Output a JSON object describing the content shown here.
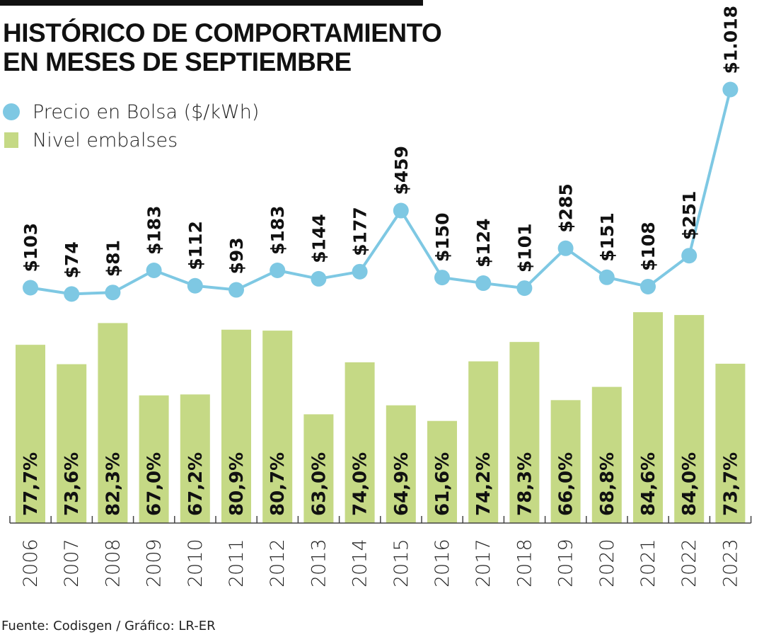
{
  "header": {
    "title_line1": "HISTÓRICO DE COMPORTAMIENTO",
    "title_line2": "EN MESES DE SEPTIEMBRE"
  },
  "legend": {
    "price_label": "Precio en Bolsa ($/kWh)",
    "reservoir_label": "Nivel embalses"
  },
  "source": "Fuente: Codisgen / Gráfico: LR-ER",
  "colors": {
    "price": "#7ec8e3",
    "reservoir": "#c5d985",
    "text": "#111111"
  },
  "chart_data": {
    "type": "bar",
    "title": "HISTÓRICO DE COMPORTAMIENTO EN MESES DE SEPTIEMBRE",
    "xlabel": "",
    "ylabel": "",
    "categories": [
      "2006",
      "2007",
      "2008",
      "2009",
      "2010",
      "2011",
      "2012",
      "2013",
      "2014",
      "2015",
      "2016",
      "2017",
      "2018",
      "2019",
      "2020",
      "2021",
      "2022",
      "2023"
    ],
    "series": [
      {
        "name": "Nivel embalses",
        "type": "bar",
        "unit": "%",
        "values": [
          77.7,
          73.6,
          82.3,
          67.0,
          67.2,
          80.9,
          80.7,
          63.0,
          74.0,
          64.9,
          61.6,
          74.2,
          78.3,
          66.0,
          68.8,
          84.6,
          84.0,
          73.7
        ],
        "labels": [
          "77,7%",
          "73,6%",
          "82,3%",
          "67,0%",
          "67,2%",
          "80,9%",
          "80,7%",
          "63,0%",
          "74,0%",
          "64,9%",
          "61,6%",
          "74,2%",
          "78,3%",
          "66,0%",
          "68,8%",
          "84,6%",
          "84,0%",
          "73,7%"
        ]
      },
      {
        "name": "Precio en Bolsa ($/kWh)",
        "type": "line",
        "unit": "$/kWh",
        "values": [
          103,
          74,
          81,
          183,
          112,
          93,
          183,
          144,
          177,
          459,
          150,
          124,
          101,
          285,
          151,
          108,
          251,
          1018
        ],
        "labels": [
          "$103",
          "$74",
          "$81",
          "$183",
          "$112",
          "$93",
          "$183",
          "$144",
          "$177",
          "$459",
          "$150",
          "$124",
          "$101",
          "$285",
          "$151",
          "$108",
          "$251",
          "$1.018"
        ]
      }
    ],
    "bar_ylim": [
      40,
      90
    ],
    "line_ylim": [
      0,
      1100
    ],
    "grid": false,
    "legend_position": "top-left"
  }
}
